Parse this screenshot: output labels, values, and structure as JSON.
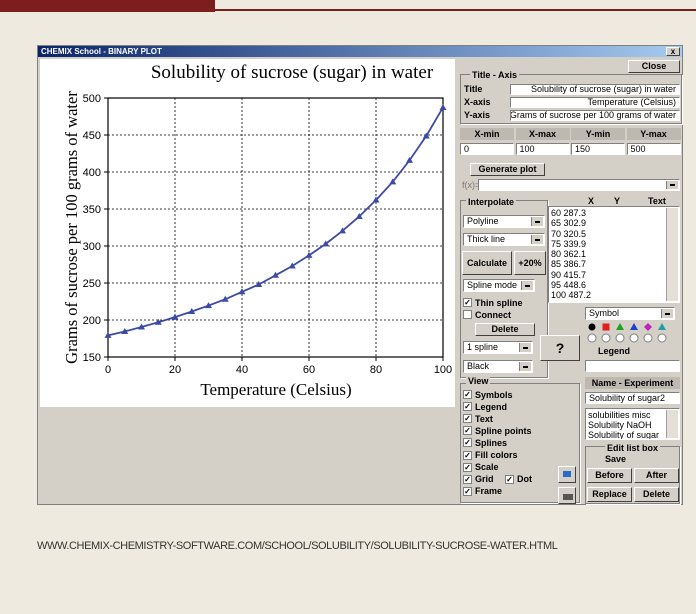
{
  "window": {
    "title": "CHEMIX School - BINARY PLOT",
    "close_x": "x",
    "close_button": "Close"
  },
  "plot": {
    "title": "Solubility of sucrose (sugar) in water",
    "x_label": "Temperature (Celsius)",
    "y_label": "Grams of sucrose per 100 grams of water",
    "x": [
      0,
      5,
      10,
      15,
      20,
      25,
      30,
      35,
      40,
      45,
      50,
      55,
      60,
      65,
      70,
      75,
      80,
      85,
      90,
      95,
      100
    ],
    "values": [
      179.2,
      184.5,
      190.5,
      197,
      203.9,
      211.5,
      219.5,
      228,
      238.1,
      248,
      260.4,
      273,
      287.3,
      302.9,
      320.5,
      339.9,
      362.1,
      386.7,
      415.7,
      448.6,
      487.2
    ],
    "xlim": [
      0,
      100
    ],
    "ylim": [
      150,
      500
    ],
    "xticks": [
      0,
      20,
      40,
      60,
      80,
      100
    ],
    "yticks": [
      150,
      200,
      250,
      300,
      350,
      400,
      450,
      500
    ],
    "grid": true,
    "color": "#3c4aa8"
  },
  "title_axis": {
    "heading": "Title - Axis",
    "rows": [
      {
        "label": "Title",
        "value": "Solubility of sucrose (sugar) in water"
      },
      {
        "label": "X-axis",
        "value": "Temperature (Celsius)"
      },
      {
        "label": "Y-axis",
        "value": "Grams of sucrose per 100 grams of water"
      }
    ],
    "range_headers": [
      "X-min",
      "X-max",
      "Y-min",
      "Y-max"
    ],
    "range_values": [
      "0",
      "100",
      "150",
      "500"
    ]
  },
  "generate": {
    "button": "Generate plot",
    "fx_label": "f(x)="
  },
  "interpolate": {
    "heading": "Interpolate",
    "line_style": "Polyline",
    "line_width": "Thick line",
    "calculate": "Calculate",
    "plus": "+20%",
    "spline_mode": "Spline mode",
    "thin_spline": {
      "label": "Thin spline",
      "checked": true
    },
    "connect": {
      "label": "Connect",
      "checked": false
    },
    "delete": "Delete",
    "spline": "1 spline",
    "color": "Black",
    "help": "?"
  },
  "data_list": {
    "headers": [
      "X",
      "Y",
      "Text"
    ],
    "rows": [
      "60 287.3",
      "65 302.9",
      "70 320.5",
      "75 339.9",
      "80 362.1",
      "85 386.7",
      "90 415.7",
      "95 448.6",
      "100 487.2"
    ]
  },
  "symbol": {
    "select": "Symbol",
    "legend_label": "Legend"
  },
  "view": {
    "heading": "View",
    "options": [
      {
        "label": "Symbols",
        "checked": true
      },
      {
        "label": "Legend",
        "checked": true
      },
      {
        "label": "Text",
        "checked": true
      },
      {
        "label": "Spline points",
        "checked": true
      },
      {
        "label": "Splines",
        "checked": true
      },
      {
        "label": "Fill colors",
        "checked": true
      },
      {
        "label": "Scale",
        "checked": true
      },
      {
        "label": "Grid",
        "checked": true
      },
      {
        "label": "Dot",
        "checked": true
      },
      {
        "label": "Frame",
        "checked": true
      }
    ]
  },
  "experiment": {
    "heading": "Name - Experiment",
    "name": "Solubility of sugar2",
    "list": [
      "solubilities misc",
      "Solubility NaOH",
      "Solubility of sugar"
    ],
    "edit_heading": "Edit list box",
    "save_heading": "Save",
    "buttons": [
      "Before",
      "After",
      "Replace",
      "Delete"
    ]
  },
  "footer": {
    "url": "WWW.CHEMIX-CHEMISTRY-SOFTWARE.COM/SCHOOL/SOLUBILITY/SOLUBILITY-SUCROSE-WATER.HTML"
  }
}
